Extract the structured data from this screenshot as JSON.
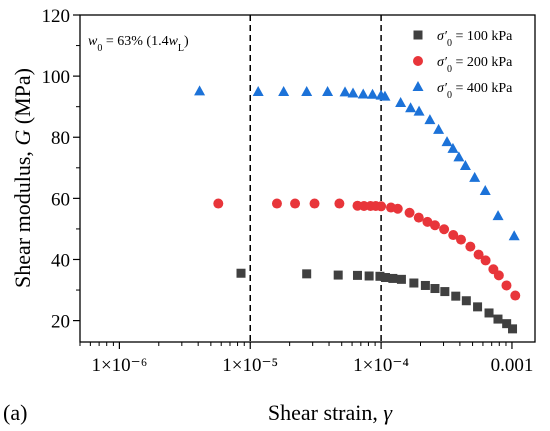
{
  "chart_data": {
    "type": "scatter",
    "panel_label": "(a)",
    "annotation": "w0 = 63% (1.4wL)",
    "xlabel": "Shear strain, γ",
    "ylabel": "Shear modulus, G (MPa)",
    "x_scale": "log",
    "xlim": [
      5e-07,
      0.0015
    ],
    "ylim": [
      13,
      120
    ],
    "x_ticks": [
      {
        "value": 1e-06,
        "label": "1×10⁻⁶"
      },
      {
        "value": 1e-05,
        "label": "1×10⁻⁵"
      },
      {
        "value": 0.0001,
        "label": "1×10⁻⁴"
      },
      {
        "value": 0.001,
        "label": "0.001"
      }
    ],
    "y_ticks": [
      20,
      40,
      60,
      80,
      100,
      120
    ],
    "vertical_reference_lines": [
      1e-05,
      0.0001
    ],
    "legend_position": "top-right",
    "series": [
      {
        "name": "σ'0 = 100 kPa",
        "marker": "square",
        "color": "#404040",
        "points": [
          [
            8.5e-06,
            35.5
          ],
          [
            2.7e-05,
            35.3
          ],
          [
            4.7e-05,
            34.9
          ],
          [
            6.6e-05,
            34.8
          ],
          [
            8.1e-05,
            34.6
          ],
          [
            9.8e-05,
            34.5
          ],
          [
            0.000108,
            34.1
          ],
          [
            0.000123,
            33.8
          ],
          [
            0.000143,
            33.5
          ],
          [
            0.000178,
            32.3
          ],
          [
            0.000218,
            31.5
          ],
          [
            0.000258,
            30.5
          ],
          [
            0.000307,
            29.5
          ],
          [
            0.000372,
            28.0
          ],
          [
            0.000448,
            26.5
          ],
          [
            0.000546,
            24.5
          ],
          [
            0.000668,
            22.5
          ],
          [
            0.000782,
            20.5
          ],
          [
            0.000911,
            19.0
          ],
          [
            0.00101,
            17.3
          ]
        ]
      },
      {
        "name": "σ'0 = 200 kPa",
        "marker": "circle",
        "color": "#e8353a",
        "points": [
          [
            5.7e-06,
            58.3
          ],
          [
            1.6e-05,
            58.3
          ],
          [
            2.2e-05,
            58.3
          ],
          [
            3.1e-05,
            58.3
          ],
          [
            4.8e-05,
            58.3
          ],
          [
            6.6e-05,
            57.6
          ],
          [
            7.4e-05,
            57.5
          ],
          [
            8.3e-05,
            57.5
          ],
          [
            9.1e-05,
            57.5
          ],
          [
            0.0001,
            57.4
          ],
          [
            0.000119,
            57.0
          ],
          [
            0.000134,
            56.6
          ],
          [
            0.000165,
            55.3
          ],
          [
            0.000194,
            53.7
          ],
          [
            0.000226,
            52.3
          ],
          [
            0.000258,
            51.2
          ],
          [
            0.000303,
            49.9
          ],
          [
            0.000356,
            48.0
          ],
          [
            0.000408,
            46.5
          ],
          [
            0.000481,
            44.2
          ],
          [
            0.000556,
            41.6
          ],
          [
            0.000629,
            39.7
          ],
          [
            0.000721,
            36.8
          ],
          [
            0.000794,
            34.8
          ],
          [
            0.000908,
            31.5
          ],
          [
            0.00106,
            28.2
          ]
        ]
      },
      {
        "name": "σ'0 = 400 kPa",
        "marker": "triangle",
        "color": "#1c72d8",
        "points": [
          [
            4.1e-06,
            95.0
          ],
          [
            1.15e-05,
            94.8
          ],
          [
            1.8e-05,
            94.8
          ],
          [
            2.7e-05,
            94.8
          ],
          [
            3.9e-05,
            94.8
          ],
          [
            5.3e-05,
            94.7
          ],
          [
            6.1e-05,
            94.3
          ],
          [
            7.3e-05,
            94.0
          ],
          [
            8.6e-05,
            93.9
          ],
          [
            9.99e-05,
            93.6
          ],
          [
            0.000107,
            93.3
          ],
          [
            0.000141,
            91.2
          ],
          [
            0.000168,
            89.5
          ],
          [
            0.000195,
            88.4
          ],
          [
            0.000236,
            85.6
          ],
          [
            0.000275,
            82.4
          ],
          [
            0.000319,
            78.4
          ],
          [
            0.000354,
            76.2
          ],
          [
            0.000393,
            73.4
          ],
          [
            0.000441,
            70.6
          ],
          [
            0.000519,
            66.7
          ],
          [
            0.000625,
            62.4
          ],
          [
            0.000783,
            54.2
          ],
          [
            0.00104,
            47.6
          ]
        ]
      }
    ]
  }
}
